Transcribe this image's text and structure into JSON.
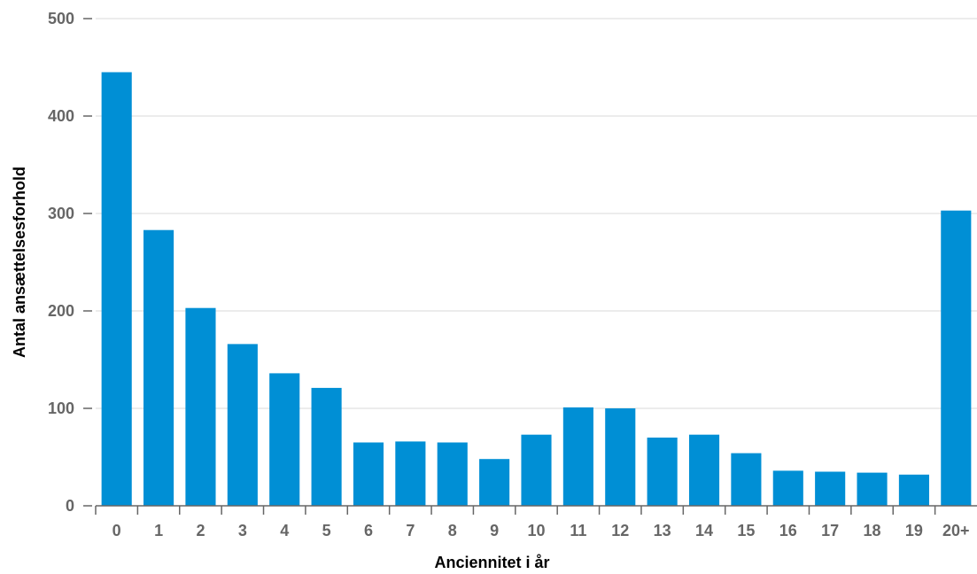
{
  "chart_data": {
    "type": "bar",
    "categories": [
      "0",
      "1",
      "2",
      "3",
      "4",
      "5",
      "6",
      "7",
      "8",
      "9",
      "10",
      "11",
      "12",
      "13",
      "14",
      "15",
      "16",
      "17",
      "18",
      "19",
      "20+"
    ],
    "values": [
      445,
      283,
      203,
      166,
      136,
      121,
      65,
      66,
      65,
      48,
      73,
      101,
      100,
      70,
      73,
      54,
      36,
      35,
      34,
      32,
      303
    ],
    "xlabel": "Anciennitet i år",
    "ylabel": "Antal ansættelsesforhold",
    "ylim": [
      0,
      500
    ],
    "yticks": [
      0,
      100,
      200,
      300,
      400,
      500
    ],
    "grid": true,
    "colors": {
      "bar": "#008fd5",
      "grid": "#e6e6e6",
      "axis": "#666666",
      "tick_text": "#666666",
      "title_text": "#000000"
    }
  }
}
